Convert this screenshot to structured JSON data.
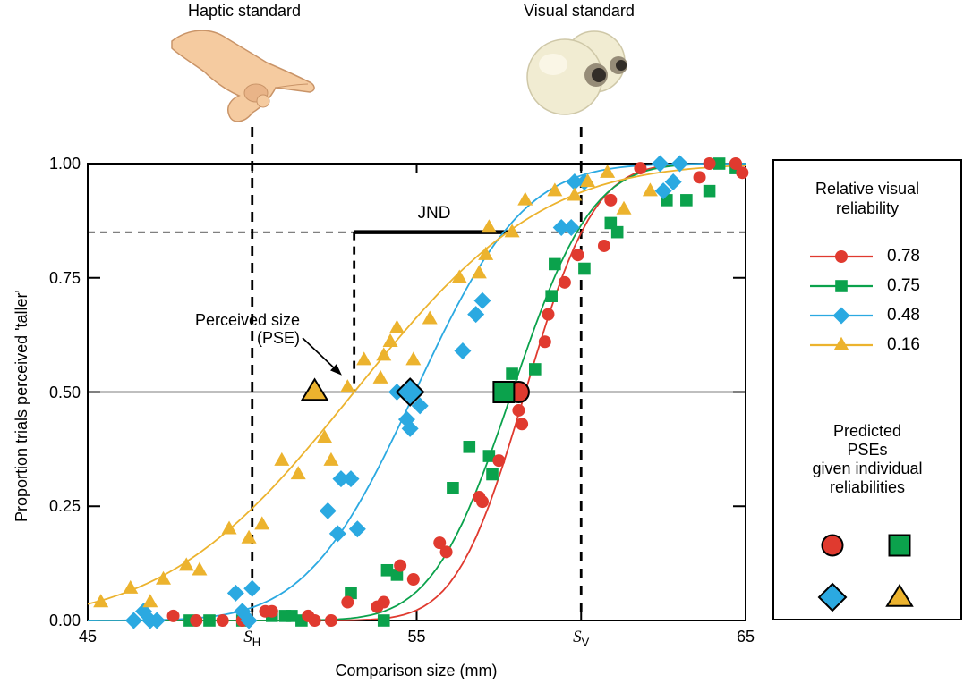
{
  "standards": {
    "haptic_label": "Haptic standard",
    "visual_label": "Visual standard",
    "haptic_mm": 50,
    "visual_mm": 60
  },
  "axes": {
    "x": {
      "label": "Comparison size (mm)",
      "min": 45,
      "max": 65,
      "ticks": [
        {
          "value": 45,
          "label": "45"
        },
        {
          "value": 50,
          "base": "S",
          "sub": "H"
        },
        {
          "value": 55,
          "label": "55"
        },
        {
          "value": 60,
          "base": "S",
          "sub": "V"
        },
        {
          "value": 65,
          "label": "65"
        }
      ]
    },
    "y": {
      "label": "Proportion trials perceived 'taller'",
      "min": 0,
      "max": 1,
      "ticks": [
        {
          "value": 0,
          "label": "0.00"
        },
        {
          "value": 0.25,
          "label": "0.25"
        },
        {
          "value": 0.5,
          "label": "0.50"
        },
        {
          "value": 0.75,
          "label": "0.75"
        },
        {
          "value": 1,
          "label": "1.00"
        }
      ]
    }
  },
  "annotations": {
    "jnd_label": "JND",
    "pse_line1": "Perceived size",
    "pse_line2": "(PSE)"
  },
  "reference_lines": {
    "chance_level": 0.5,
    "jnd_level": 0.85,
    "pse_mm": 53.1,
    "jnd_from_mm": 53.1,
    "jnd_to_mm": 57.8
  },
  "legend": {
    "title_line1": "Relative visual",
    "title_line2": "reliability",
    "entries": [
      {
        "label": "0.78",
        "marker": "circle",
        "color": "#E03A2F"
      },
      {
        "label": "0.75",
        "marker": "square",
        "color": "#0BA24C"
      },
      {
        "label": "0.48",
        "marker": "diamond",
        "color": "#2BA9E1"
      },
      {
        "label": "0.16",
        "marker": "triangle",
        "color": "#ECB32E"
      }
    ],
    "predicted_line1": "Predicted",
    "predicted_line2": "PSEs",
    "predicted_line3": "given individual",
    "predicted_line4": "reliabilities"
  },
  "illustrations": {
    "hand_skin": "#F5CBA0",
    "hand_shade": "#E9B488",
    "hand_outline": "#C99468",
    "eye_ball": "#F1ECD2",
    "eye_edge": "#CFC8A8",
    "eye_highlight": "#FBF8EA",
    "pupil_outer": "#968C78",
    "pupil_inner": "#322D28"
  },
  "chart_data": {
    "type": "scatter",
    "xlabel": "Comparison size (mm)",
    "ylabel": "Proportion trials perceived 'taller'",
    "xlim": [
      45,
      65
    ],
    "ylim": [
      0,
      1
    ],
    "haptic_standard_mm": 50,
    "visual_standard_mm": 60,
    "series": [
      {
        "name": "relative visual reliability 0.78",
        "relative_visual_reliability": 0.78,
        "color": "#E03A2F",
        "marker": "circle",
        "curve": {
          "pse_mm": 58.3,
          "sigma_mm": 1.65
        },
        "predicted_pse_mm": 58.1,
        "points": [
          [
            47.6,
            0.01
          ],
          [
            48.3,
            0.0
          ],
          [
            49.1,
            0.0
          ],
          [
            49.7,
            0.0
          ],
          [
            50.4,
            0.02
          ],
          [
            50.6,
            0.02
          ],
          [
            51.7,
            0.01
          ],
          [
            51.9,
            0.0
          ],
          [
            52.4,
            0.0
          ],
          [
            52.9,
            0.04
          ],
          [
            53.8,
            0.03
          ],
          [
            54.0,
            0.04
          ],
          [
            54.5,
            0.12
          ],
          [
            54.9,
            0.09
          ],
          [
            55.7,
            0.17
          ],
          [
            55.9,
            0.15
          ],
          [
            56.9,
            0.27
          ],
          [
            57.0,
            0.26
          ],
          [
            57.5,
            0.35
          ],
          [
            58.1,
            0.46
          ],
          [
            58.2,
            0.43
          ],
          [
            58.9,
            0.61
          ],
          [
            59.0,
            0.67
          ],
          [
            59.5,
            0.74
          ],
          [
            59.9,
            0.8
          ],
          [
            60.7,
            0.82
          ],
          [
            60.9,
            0.92
          ],
          [
            61.8,
            0.99
          ],
          [
            63.6,
            0.97
          ],
          [
            63.9,
            1.0
          ],
          [
            64.7,
            1.0
          ],
          [
            64.9,
            0.98
          ]
        ]
      },
      {
        "name": "relative visual reliability 0.75",
        "relative_visual_reliability": 0.75,
        "color": "#0BA24C",
        "marker": "square",
        "curve": {
          "pse_mm": 57.9,
          "sigma_mm": 1.9
        },
        "predicted_pse_mm": 57.65,
        "points": [
          [
            48.1,
            0.0
          ],
          [
            48.7,
            0.0
          ],
          [
            49.7,
            0.0
          ],
          [
            50.6,
            0.01
          ],
          [
            51.0,
            0.01
          ],
          [
            51.2,
            0.01
          ],
          [
            51.5,
            0.0
          ],
          [
            53.0,
            0.06
          ],
          [
            54.0,
            0.0
          ],
          [
            54.1,
            0.11
          ],
          [
            54.4,
            0.1
          ],
          [
            56.1,
            0.29
          ],
          [
            56.6,
            0.38
          ],
          [
            57.2,
            0.36
          ],
          [
            57.3,
            0.32
          ],
          [
            57.9,
            0.54
          ],
          [
            58.6,
            0.55
          ],
          [
            59.1,
            0.71
          ],
          [
            59.2,
            0.78
          ],
          [
            60.1,
            0.77
          ],
          [
            60.9,
            0.87
          ],
          [
            61.1,
            0.85
          ],
          [
            62.6,
            0.92
          ],
          [
            63.2,
            0.92
          ],
          [
            63.9,
            0.94
          ],
          [
            64.2,
            1.0
          ],
          [
            64.7,
            0.99
          ]
        ]
      },
      {
        "name": "relative visual reliability 0.48",
        "relative_visual_reliability": 0.48,
        "color": "#2BA9E1",
        "marker": "diamond",
        "curve": {
          "pse_mm": 54.95,
          "sigma_mm": 2.6
        },
        "predicted_pse_mm": 54.8,
        "points": [
          [
            46.4,
            0.0
          ],
          [
            46.7,
            0.02
          ],
          [
            46.9,
            0.0
          ],
          [
            47.1,
            0.0
          ],
          [
            49.5,
            0.06
          ],
          [
            49.7,
            0.02
          ],
          [
            49.9,
            0.0
          ],
          [
            50.0,
            0.07
          ],
          [
            52.3,
            0.24
          ],
          [
            52.6,
            0.19
          ],
          [
            52.7,
            0.31
          ],
          [
            53.0,
            0.31
          ],
          [
            53.2,
            0.2
          ],
          [
            54.4,
            0.5
          ],
          [
            54.7,
            0.44
          ],
          [
            54.8,
            0.42
          ],
          [
            55.1,
            0.47
          ],
          [
            56.4,
            0.59
          ],
          [
            56.8,
            0.67
          ],
          [
            57.0,
            0.7
          ],
          [
            59.4,
            0.86
          ],
          [
            59.7,
            0.86
          ],
          [
            59.8,
            0.96
          ],
          [
            60.1,
            0.96
          ],
          [
            62.4,
            1.0
          ],
          [
            62.5,
            0.94
          ],
          [
            62.8,
            0.96
          ],
          [
            63.0,
            1.0
          ]
        ]
      },
      {
        "name": "relative visual reliability 0.16",
        "relative_visual_reliability": 0.16,
        "color": "#ECB32E",
        "marker": "triangle",
        "curve": {
          "pse_mm": 53.1,
          "sigma_mm": 4.5
        },
        "predicted_pse_mm": 51.9,
        "points": [
          [
            45.4,
            0.04
          ],
          [
            46.3,
            0.07
          ],
          [
            46.9,
            0.04
          ],
          [
            47.3,
            0.09
          ],
          [
            48.0,
            0.12
          ],
          [
            48.4,
            0.11
          ],
          [
            49.3,
            0.2
          ],
          [
            49.9,
            0.18
          ],
          [
            50.3,
            0.21
          ],
          [
            50.9,
            0.35
          ],
          [
            51.4,
            0.32
          ],
          [
            52.2,
            0.4
          ],
          [
            52.4,
            0.35
          ],
          [
            52.9,
            0.51
          ],
          [
            53.4,
            0.57
          ],
          [
            53.9,
            0.53
          ],
          [
            54.0,
            0.58
          ],
          [
            54.2,
            0.61
          ],
          [
            54.4,
            0.64
          ],
          [
            54.9,
            0.57
          ],
          [
            55.4,
            0.66
          ],
          [
            56.3,
            0.75
          ],
          [
            56.9,
            0.76
          ],
          [
            57.1,
            0.8
          ],
          [
            57.2,
            0.86
          ],
          [
            57.9,
            0.85
          ],
          [
            58.3,
            0.92
          ],
          [
            59.2,
            0.94
          ],
          [
            59.8,
            0.93
          ],
          [
            60.2,
            0.96
          ],
          [
            60.8,
            0.98
          ],
          [
            61.3,
            0.9
          ],
          [
            62.1,
            0.94
          ]
        ]
      }
    ]
  }
}
